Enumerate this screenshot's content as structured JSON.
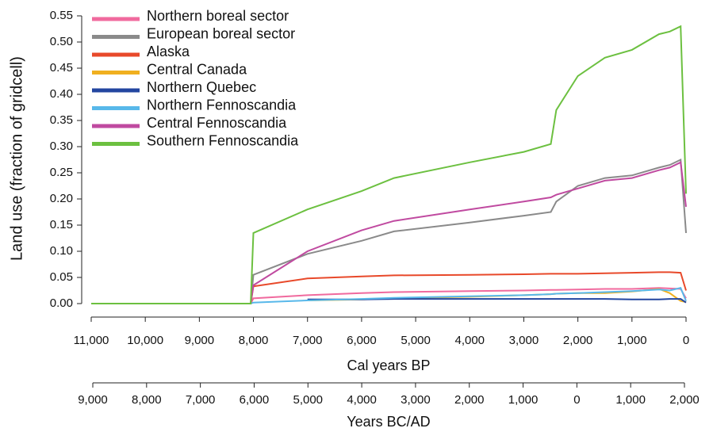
{
  "chart_data": {
    "type": "line",
    "ylabel": "Land use (fraction of gridcell)",
    "xlabel": "Cal years BP",
    "x2label": "Years BC/AD",
    "x": [
      11000,
      8050,
      8000,
      7000,
      6000,
      5400,
      4000,
      3000,
      2500,
      2400,
      2000,
      1500,
      1000,
      500,
      300,
      100,
      0
    ],
    "xlim": [
      11000,
      0
    ],
    "xticks": [
      {
        "value": 11000,
        "label": "11,000"
      },
      {
        "value": 10000,
        "label": "10,000"
      },
      {
        "value": 9000,
        "label": "9,000"
      },
      {
        "value": 8000,
        "label": "8,000"
      },
      {
        "value": 7000,
        "label": "7,000"
      },
      {
        "value": 6000,
        "label": "6,000"
      },
      {
        "value": 5000,
        "label": "5,000"
      },
      {
        "value": 4000,
        "label": "4,000"
      },
      {
        "value": 3000,
        "label": "3,000"
      },
      {
        "value": 2000,
        "label": "2,000"
      },
      {
        "value": 1000,
        "label": "1,000"
      },
      0
    ],
    "x2lim": [
      -9000,
      2000
    ],
    "x2ticks": [
      {
        "value": -9000,
        "label": "9,000"
      },
      {
        "value": -8000,
        "label": "8,000"
      },
      {
        "value": -7000,
        "label": "7,000"
      },
      {
        "value": -6000,
        "label": "6,000"
      },
      {
        "value": -5000,
        "label": "5,000"
      },
      {
        "value": -4000,
        "label": "4,000"
      },
      {
        "value": -3000,
        "label": "3,000"
      },
      {
        "value": -2000,
        "label": "2,000"
      },
      {
        "value": -1000,
        "label": "1,000"
      },
      0,
      {
        "value": 1000,
        "label": "1,000"
      },
      {
        "value": 2000,
        "label": "2,000"
      }
    ],
    "ylim": [
      0,
      0.55
    ],
    "yticks": [
      {
        "value": 0,
        "label": "0.00"
      },
      {
        "value": 0.05,
        "label": "0.05"
      },
      {
        "value": 0.1,
        "label": "0.10"
      },
      {
        "value": 0.15,
        "label": "0.15"
      },
      {
        "value": 0.2,
        "label": "0.20"
      },
      {
        "value": 0.25,
        "label": "0.25"
      },
      {
        "value": 0.3,
        "label": "0.30"
      },
      {
        "value": 0.35,
        "label": "0.35"
      },
      {
        "value": 0.4,
        "label": "0.40"
      },
      {
        "value": 0.45,
        "label": "0.45"
      },
      {
        "value": 0.5,
        "label": "0.50"
      },
      {
        "value": 0.55,
        "label": "0.55"
      }
    ],
    "legend": "upper left",
    "series": [
      {
        "name": "Northern boreal sector",
        "color": "#f06a9e",
        "values": [
          0,
          0,
          0.01,
          0.016,
          0.02,
          0.022,
          0.024,
          0.025,
          0.026,
          0.026,
          0.027,
          0.028,
          0.028,
          0.03,
          0.029,
          0.028,
          0.01
        ]
      },
      {
        "name": "European boreal sector",
        "color": "#8a8a8a",
        "values": [
          0,
          0,
          0.055,
          0.095,
          0.12,
          0.138,
          0.155,
          0.168,
          0.175,
          0.195,
          0.225,
          0.24,
          0.245,
          0.26,
          0.265,
          0.275,
          0.135
        ]
      },
      {
        "name": "Alaska",
        "color": "#e8492a",
        "values": [
          0,
          0,
          0.033,
          0.048,
          0.052,
          0.054,
          0.055,
          0.056,
          0.057,
          0.057,
          0.057,
          0.058,
          0.059,
          0.06,
          0.06,
          0.059,
          0.025
        ]
      },
      {
        "name": "Central Canada",
        "color": "#f0b020",
        "values": [
          0,
          0,
          null,
          0.006,
          0.008,
          0.01,
          0.013,
          0.016,
          0.018,
          0.019,
          0.02,
          0.02,
          0.023,
          0.028,
          0.02,
          0.005,
          0.003
        ]
      },
      {
        "name": "Northern Quebec",
        "color": "#2346a0",
        "values": [
          0,
          0,
          null,
          0.008,
          0.008,
          0.009,
          0.009,
          0.009,
          0.009,
          0.009,
          0.009,
          0.009,
          0.008,
          0.008,
          0.009,
          0.009,
          0.002
        ]
      },
      {
        "name": "Northern Fennoscandia",
        "color": "#58b8ea",
        "values": [
          0,
          0,
          0.002,
          0.006,
          0.009,
          0.011,
          0.014,
          0.016,
          0.018,
          0.019,
          0.02,
          0.022,
          0.024,
          0.027,
          0.025,
          0.03,
          0.005
        ]
      },
      {
        "name": "Central Fennoscandia",
        "color": "#c04aa0",
        "values": [
          0,
          0,
          0.035,
          0.1,
          0.14,
          0.158,
          0.18,
          0.195,
          0.203,
          0.208,
          0.22,
          0.235,
          0.24,
          0.255,
          0.26,
          0.27,
          0.185
        ]
      },
      {
        "name": "Southern Fennoscandia",
        "color": "#6cc040",
        "values": [
          0,
          0,
          0.135,
          0.18,
          0.215,
          0.24,
          0.27,
          0.29,
          0.305,
          0.37,
          0.435,
          0.47,
          0.485,
          0.515,
          0.52,
          0.53,
          0.21
        ]
      }
    ]
  }
}
